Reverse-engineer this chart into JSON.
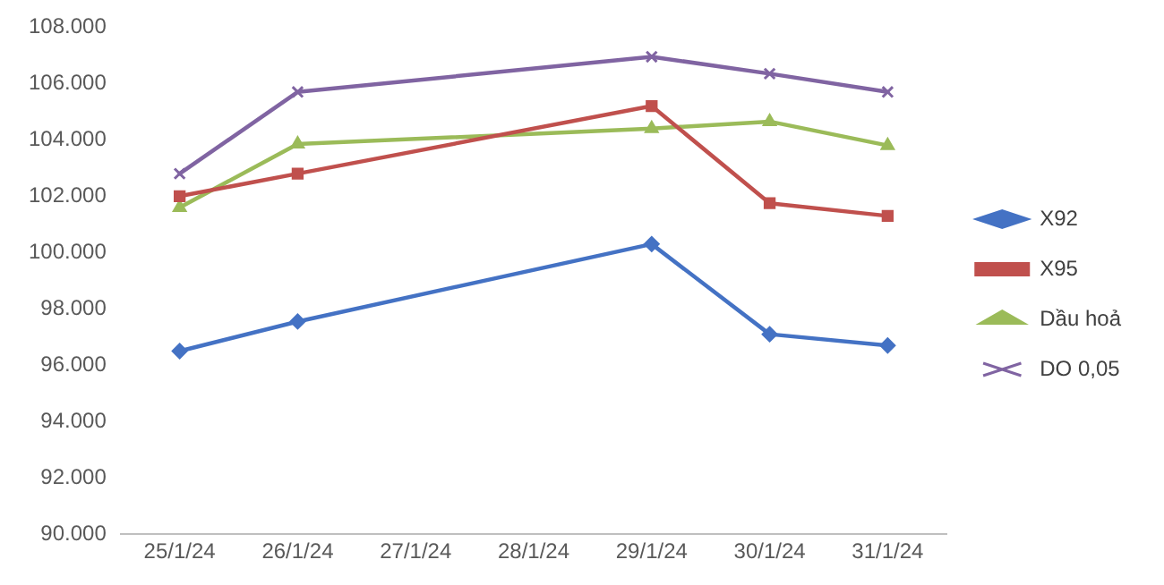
{
  "chart_data": {
    "type": "line",
    "x": [
      "--01-25",
      "--01-26",
      "--01-29",
      "--01-30",
      "--01-31"
    ],
    "xlim": [
      "--01-24T12:00",
      "--01-31T12:00"
    ],
    "xticks": [
      {
        "value": "--01-25",
        "label": "25/1/24"
      },
      {
        "value": "--01-26",
        "label": "26/1/24"
      },
      {
        "value": "--01-27",
        "label": "27/1/24"
      },
      {
        "value": "--01-28",
        "label": "28/1/24"
      },
      {
        "value": "--01-29",
        "label": "29/1/24"
      },
      {
        "value": "--01-30",
        "label": "30/1/24"
      },
      {
        "value": "--01-31",
        "label": "31/1/24"
      }
    ],
    "ylim": [
      90000,
      108000
    ],
    "yticks": [
      {
        "value": 90000,
        "label": "90.000"
      },
      {
        "value": 92000,
        "label": "92.000"
      },
      {
        "value": 94000,
        "label": "94.000"
      },
      {
        "value": 96000,
        "label": "96.000"
      },
      {
        "value": 98000,
        "label": "98.000"
      },
      {
        "value": 100000,
        "label": "100.000"
      },
      {
        "value": 102000,
        "label": "102.000"
      },
      {
        "value": 104000,
        "label": "104.000"
      },
      {
        "value": 106000,
        "label": "106.000"
      },
      {
        "value": 108000,
        "label": "108.000"
      }
    ],
    "series": [
      {
        "name": "X92",
        "color": "#4472c4",
        "marker": "diamond",
        "values": [
          96500,
          97550,
          100300,
          97100,
          96700
        ]
      },
      {
        "name": "X95",
        "color": "#c0504d",
        "marker": "square",
        "values": [
          102000,
          102800,
          105200,
          101750,
          101300
        ]
      },
      {
        "name": "Dầu hoả",
        "color": "#9bbb59",
        "marker": "triangle",
        "values": [
          101600,
          103850,
          104400,
          104650,
          103800
        ]
      },
      {
        "name": "DO 0,05",
        "color": "#8064a2",
        "marker": "cross",
        "values": [
          102800,
          105700,
          106950,
          106350,
          105700
        ]
      }
    ],
    "grid": false,
    "legend": "right",
    "line_style": "solid"
  }
}
